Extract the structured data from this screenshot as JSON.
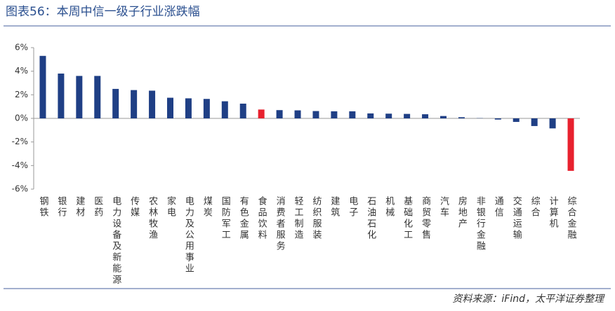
{
  "chart_data": {
    "type": "bar",
    "title": "图表56：本周中信一级子行业涨跌幅",
    "source": "资料来源：iFind，太平洋证券整理",
    "categories": [
      "钢铁",
      "银行",
      "建材",
      "医药",
      "电力设备及新能源",
      "传媒",
      "农林牧渔",
      "家电",
      "电力及公用事业",
      "煤炭",
      "国防军工",
      "有色金属",
      "食品饮料",
      "消费者服务",
      "轻工制造",
      "纺织服装",
      "建筑",
      "电子",
      "石油石化",
      "机械",
      "基础化工",
      "商贸零售",
      "汽车",
      "房地产",
      "非银行金融",
      "通信",
      "交通运输",
      "综合",
      "计算机",
      "综合金融"
    ],
    "values": [
      5.3,
      3.8,
      3.6,
      3.6,
      2.5,
      2.4,
      2.35,
      1.75,
      1.7,
      1.65,
      1.45,
      1.25,
      0.75,
      0.7,
      0.68,
      0.62,
      0.6,
      0.6,
      0.42,
      0.4,
      0.38,
      0.35,
      0.2,
      0.1,
      0.02,
      -0.1,
      -0.3,
      -0.65,
      -0.85,
      -4.45
    ],
    "colors": [
      "#1f3f85",
      "#1f3f85",
      "#1f3f85",
      "#1f3f85",
      "#1f3f85",
      "#1f3f85",
      "#1f3f85",
      "#1f3f85",
      "#1f3f85",
      "#1f3f85",
      "#1f3f85",
      "#1f3f85",
      "#e8212e",
      "#1f3f85",
      "#1f3f85",
      "#1f3f85",
      "#1f3f85",
      "#1f3f85",
      "#1f3f85",
      "#1f3f85",
      "#1f3f85",
      "#1f3f85",
      "#1f3f85",
      "#1f3f85",
      "#1f3f85",
      "#1f3f85",
      "#1f3f85",
      "#1f3f85",
      "#1f3f85",
      "#e8212e"
    ],
    "ylim": [
      -6,
      6
    ],
    "yticks": [
      {
        "value": -6,
        "label": "-6%"
      },
      {
        "value": -4,
        "label": "-4%"
      },
      {
        "value": -2,
        "label": "-2%"
      },
      {
        "value": 0,
        "label": "0%"
      },
      {
        "value": 2,
        "label": "2%"
      },
      {
        "value": 4,
        "label": "4%"
      },
      {
        "value": 6,
        "label": "6%"
      }
    ]
  }
}
